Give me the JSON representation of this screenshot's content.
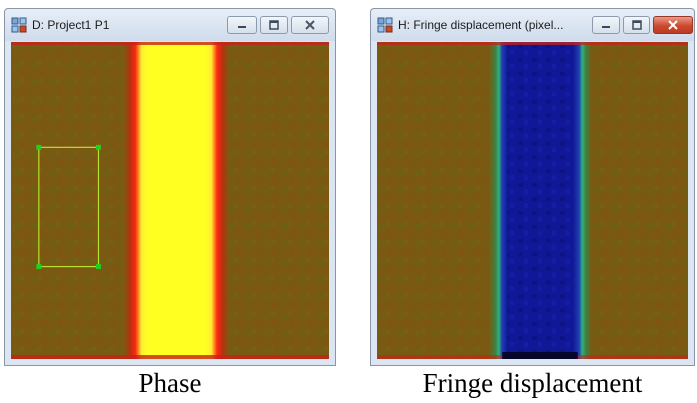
{
  "windows": [
    {
      "title": "D: Project1 P1",
      "icon": "app-window-icon",
      "controls": [
        "minimize-icon",
        "maximize-icon",
        "close-icon"
      ],
      "image": "phase-map",
      "caption": "Phase"
    },
    {
      "title": "H: Fringe displacement (pixel...",
      "icon": "app-window-icon",
      "controls": [
        "minimize-icon",
        "maximize-icon",
        "close-icon"
      ],
      "image": "fringe-displacement-map",
      "caption": "Fringe displacement"
    }
  ],
  "colors": {
    "background_field": "#7a5a12",
    "phase_band": "#ffff22",
    "phase_band_edge": "#e01010",
    "displacement_band": "#101898",
    "displacement_band_edge": "#30b080",
    "roi_line": "#b8e030",
    "roi_handle": "#20d020",
    "close_button_active": "#cc4a2f"
  }
}
